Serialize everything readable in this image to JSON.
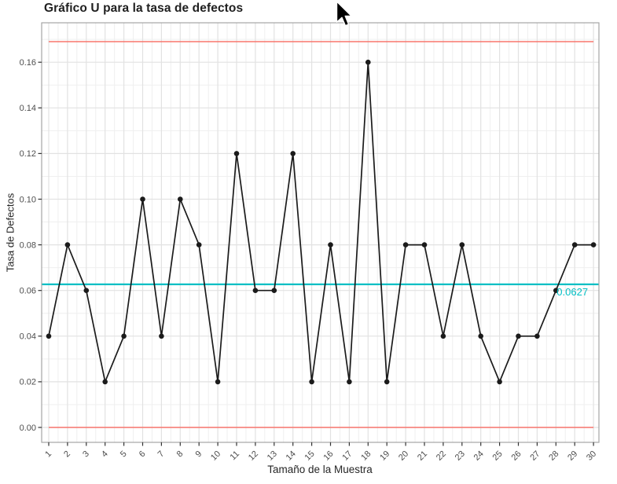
{
  "chart_data": {
    "type": "line",
    "title": "Gráfico U para la tasa de defectos",
    "xlabel": "Tamaño de la Muestra",
    "ylabel": "Tasa de Defectos",
    "x": [
      1,
      2,
      3,
      4,
      5,
      6,
      7,
      8,
      9,
      10,
      11,
      12,
      13,
      14,
      15,
      16,
      17,
      18,
      19,
      20,
      21,
      22,
      23,
      24,
      25,
      26,
      27,
      28,
      29,
      30
    ],
    "values": [
      0.04,
      0.08,
      0.06,
      0.02,
      0.04,
      0.1,
      0.04,
      0.1,
      0.08,
      0.02,
      0.12,
      0.06,
      0.06,
      0.12,
      0.02,
      0.08,
      0.02,
      0.16,
      0.02,
      0.08,
      0.08,
      0.04,
      0.08,
      0.04,
      0.02,
      0.04,
      0.04,
      0.06,
      0.08,
      0.08
    ],
    "center_line": {
      "value": 0.0627,
      "label": "0.0627"
    },
    "upper_control_limit": 0.169,
    "lower_control_limit": 0.0,
    "yticks": {
      "values": [
        0.0,
        0.02,
        0.04,
        0.06,
        0.08,
        0.1,
        0.12,
        0.14,
        0.16
      ],
      "labels": [
        "0.00",
        "0.02",
        "0.04",
        "0.06",
        "0.08",
        "0.10",
        "0.12",
        "0.14",
        "0.16"
      ]
    },
    "xtick_labels": [
      "1",
      "2",
      "3",
      "4",
      "5",
      "6",
      "7",
      "8",
      "9",
      "10",
      "11",
      "12",
      "13",
      "14",
      "15",
      "16",
      "17",
      "18",
      "19",
      "20",
      "21",
      "22",
      "23",
      "24",
      "25",
      "26",
      "27",
      "28",
      "29",
      "30"
    ],
    "ylim": [
      -0.0065,
      0.1773
    ],
    "grid": true,
    "legend": "none",
    "colors": {
      "series": "#1b1b1b",
      "center_line": "#00BFC4",
      "control_limit": "#F8766D",
      "grid_major": "#e2e2e2",
      "grid_minor": "#efefef",
      "axis_text": "#4d4d4d",
      "axis_tick": "#333333",
      "panel_border": "#a5a5a5"
    }
  },
  "cursor": {
    "icon": "arrow-pointer"
  }
}
